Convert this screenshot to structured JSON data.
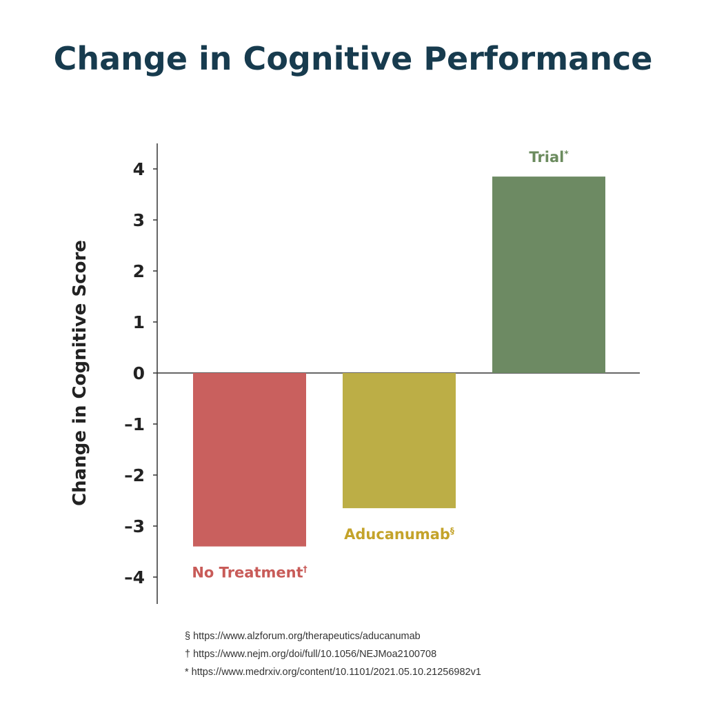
{
  "chart_data": {
    "type": "bar",
    "title": "Change in Cognitive Performance",
    "ylabel": "Change in Cognitive Score",
    "xlabel": "",
    "ylim": [
      -4.5,
      4.5
    ],
    "yticks": [
      4,
      3,
      2,
      1,
      0,
      -1,
      -2,
      -3,
      -4
    ],
    "ytick_labels": [
      "4",
      "3",
      "2",
      "1",
      "0",
      "-1",
      "-2",
      "-3",
      "-4"
    ],
    "categories": [
      "No Treatment",
      "Aducanumab",
      "Trial"
    ],
    "markers": [
      "†",
      "§",
      "*"
    ],
    "values": [
      -3.4,
      -2.65,
      3.85
    ],
    "colors": [
      "#c9605e",
      "#bcae46",
      "#6d8a63"
    ],
    "label_colors": [
      "#c85b58",
      "#c4a32a",
      "#6b8b5e"
    ],
    "grid": false,
    "legend": "none"
  },
  "footnotes": [
    "§ https://www.alzforum.org/therapeutics/aducanumab",
    "† https://www.nejm.org/doi/full/10.1056/NEJMoa2100708",
    "* https://www.medrxiv.org/content/10.1101/2021.05.10.21256982v1"
  ]
}
